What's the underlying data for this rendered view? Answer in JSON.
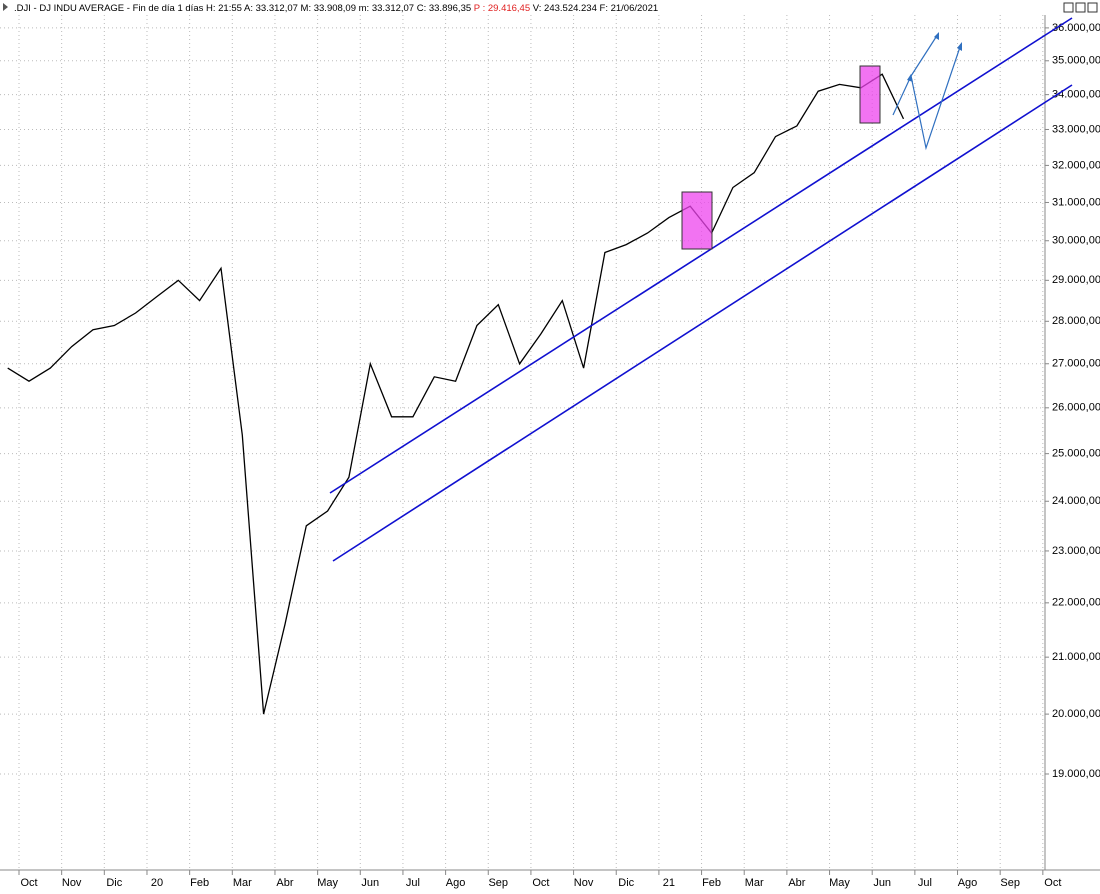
{
  "chart_data": {
    "type": "line",
    "title": ".DJI - DJ INDU AVERAGE - Fin de día 1 días H: 21:55 A: 33.312,07 M: 33.908,09 m: 33.312,07 C: 33.896,35",
    "title_highlight": "P : 29.416,45",
    "title_end": "V: 243.524.234 F: 21/06/2021",
    "categories": [
      null,
      "Oct",
      null,
      "Nov",
      null,
      "Dic",
      null,
      "20",
      null,
      "Feb",
      null,
      "Mar",
      null,
      "Abr",
      null,
      "May",
      null,
      "Jun",
      null,
      "Jul",
      null,
      "Ago",
      null,
      "Sep",
      null,
      "Oct",
      null,
      "Nov",
      null,
      "Dic",
      null,
      "21",
      null,
      "Feb",
      null,
      "Mar",
      null,
      "Abr",
      null,
      "May",
      null,
      "Jun",
      null,
      "Jul",
      null,
      "Ago",
      null,
      "Sep",
      null,
      "Oct"
    ],
    "series": [
      {
        "name": ".DJI",
        "color": "#000000",
        "values": [
          26900,
          26600,
          26900,
          27400,
          27800,
          27900,
          28200,
          28600,
          29000,
          28500,
          29300,
          25400,
          20000,
          21600,
          23500,
          23800,
          24500,
          27000,
          25800,
          25800,
          26700,
          26600,
          27900,
          28400,
          27000,
          27700,
          28500,
          26900,
          29700,
          29900,
          30200,
          30600,
          30900,
          30200,
          31400,
          31800,
          32800,
          33100,
          34100,
          34300,
          34200,
          34600,
          33300,
          null,
          null,
          null,
          null,
          null,
          null,
          null
        ]
      }
    ],
    "log_scale": true,
    "grid": true,
    "ylim": [
      17500,
      36400
    ],
    "yticks": [
      {
        "value": 19000,
        "label": "19.000,00"
      },
      {
        "value": 20000,
        "label": "20.000,00"
      },
      {
        "value": 21000,
        "label": "21.000,00"
      },
      {
        "value": 22000,
        "label": "22.000,00"
      },
      {
        "value": 23000,
        "label": "23.000,00"
      },
      {
        "value": 24000,
        "label": "24.000,00"
      },
      {
        "value": 25000,
        "label": "25.000,00"
      },
      {
        "value": 26000,
        "label": "26.000,00"
      },
      {
        "value": 27000,
        "label": "27.000,00"
      },
      {
        "value": 28000,
        "label": "28.000,00"
      },
      {
        "value": 29000,
        "label": "29.000,00"
      },
      {
        "value": 30000,
        "label": "30.000,00"
      },
      {
        "value": 31000,
        "label": "31.000,00"
      },
      {
        "value": 32000,
        "label": "32.000,00"
      },
      {
        "value": 33000,
        "label": "33.000,00"
      },
      {
        "value": 34000,
        "label": "34.000,00"
      },
      {
        "value": 35000,
        "label": "35.000,00"
      },
      {
        "value": 36000,
        "label": "36.000,00"
      }
    ]
  }
}
